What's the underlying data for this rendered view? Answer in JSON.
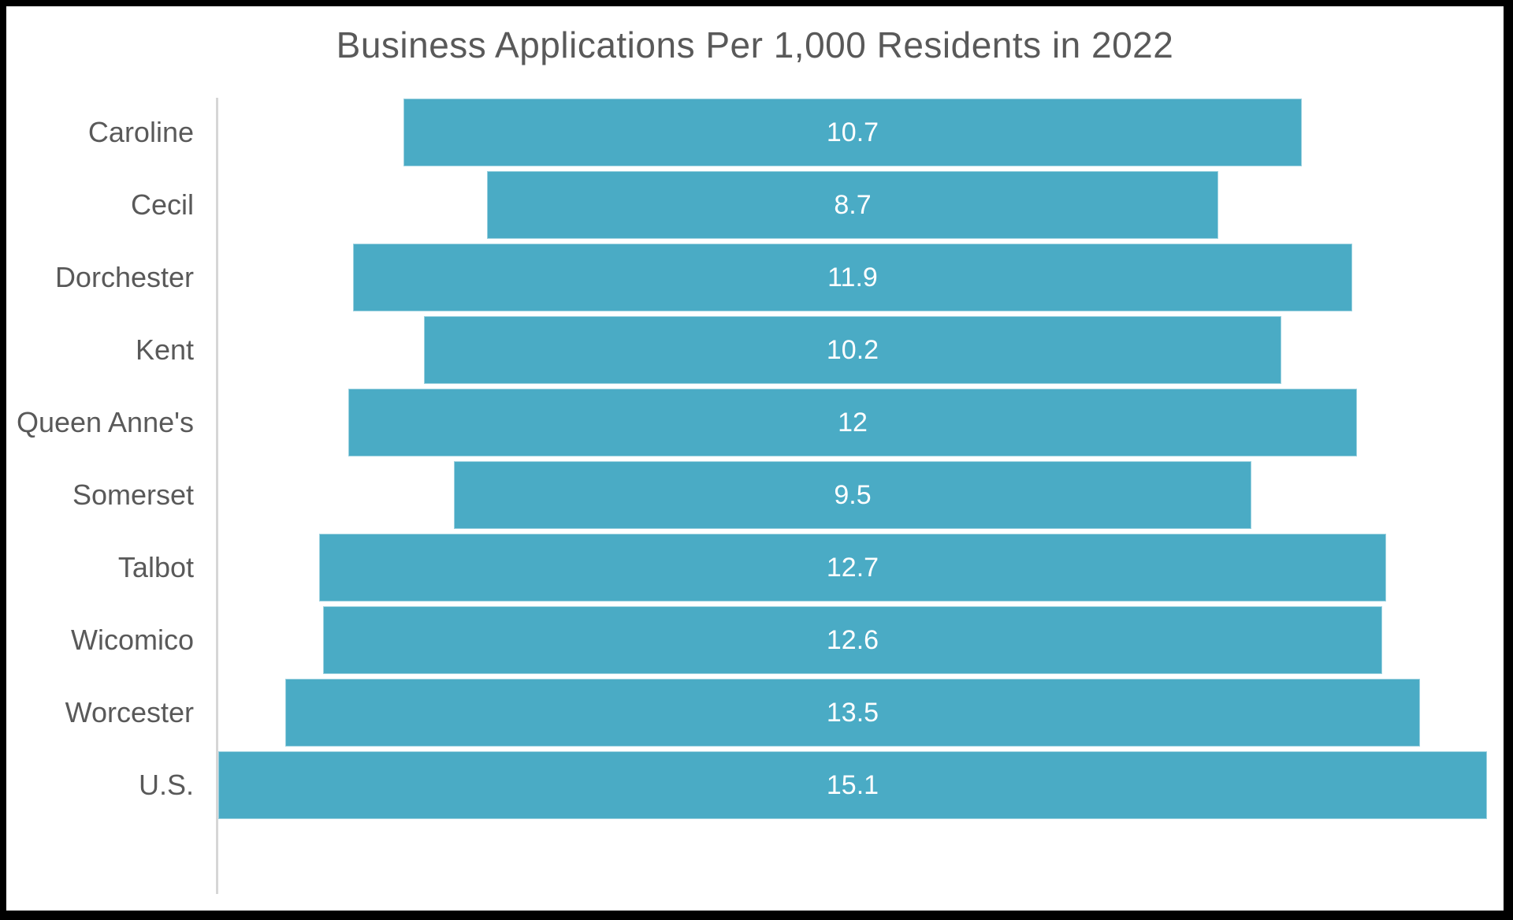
{
  "chart_data": {
    "type": "bar",
    "orientation": "horizontal-centered",
    "title": "Business Applications Per 1,000 Residents in 2022",
    "categories": [
      "Caroline",
      "Cecil",
      "Dorchester",
      "Kent",
      "Queen Anne's",
      "Somerset",
      "Talbot",
      "Wicomico",
      "Worcester",
      "U.S."
    ],
    "values": [
      10.7,
      8.7,
      11.9,
      10.2,
      12,
      9.5,
      12.7,
      12.6,
      13.5,
      15.1
    ],
    "value_labels": [
      "10.7",
      "8.7",
      "11.9",
      "10.2",
      "12",
      "9.5",
      "12.7",
      "12.6",
      "13.5",
      "15.1"
    ],
    "xlabel": "",
    "ylabel": "",
    "grid": false,
    "legend": false,
    "colors": {
      "bar_fill": "#4aabc5",
      "value_label": "#ffffff",
      "category_label": "#595959",
      "title": "#595959",
      "axis_line": "#d6d6d6",
      "background": "#ffffff",
      "frame": "#000000"
    }
  }
}
